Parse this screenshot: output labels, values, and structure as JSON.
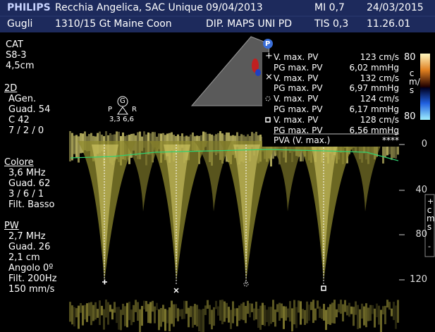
{
  "header": {
    "brand": "PHILIPS",
    "patient": "Recchia Angelica, SAC Unique",
    "birth_date": "09/04/2013",
    "mi": "MI 0,7",
    "date": "24/03/2015",
    "operator": "Gugli",
    "case": "1310/15 Gt Maine Coon",
    "department": "DIP. MAPS UNI PD",
    "tis": "TIS 0,3",
    "time": "11.26.01"
  },
  "left_panel": {
    "probe": [
      "CAT",
      "S8-3",
      "4,5cm"
    ],
    "mode_2d": {
      "title": "2D",
      "lines": [
        "AGen.",
        "Guad. 54",
        "C 42",
        "7 / 2 / 0"
      ]
    },
    "color": {
      "title": "Colore",
      "lines": [
        "3,6 MHz",
        "Guad. 62",
        "3 / 6 / 1",
        "Filt. Basso"
      ]
    },
    "pw": {
      "title": "PW",
      "lines": [
        "2,7 MHz",
        "Guad. 26",
        "2,1 cm",
        "Angolo 0º",
        "Filt. 200Hz",
        "150 mm/s"
      ]
    }
  },
  "probe_marker": "P",
  "gate": {
    "symbol": "G",
    "left": "P",
    "right": "R",
    "values": "3,3 6,6"
  },
  "measurements": [
    {
      "label": "V. max. PV",
      "value": "123 cm/s"
    },
    {
      "label": "PG max. PV",
      "value": "6,02 mmHg"
    },
    {
      "label": "V. max. PV",
      "value": "132 cm/s"
    },
    {
      "label": "PG max. PV",
      "value": "6,97 mmHg"
    },
    {
      "label": "V. max. PV",
      "value": "124 cm/s"
    },
    {
      "label": "PG max. PV",
      "value": "6,17 mmHg"
    },
    {
      "label": "V. max. PV",
      "value": "128 cm/s"
    },
    {
      "label": "PG max. PV",
      "value": "6,56 mmHg"
    },
    {
      "label": "PVA (V. max.)",
      "value": "****"
    }
  ],
  "color_bar": {
    "top": "80",
    "unit": "cm/s",
    "bottom": "80"
  },
  "velocity_scale": {
    "ticks": [
      "0",
      "40",
      "80",
      "120"
    ],
    "plus": "+",
    "unit": "cm/s",
    "minus": "-"
  }
}
